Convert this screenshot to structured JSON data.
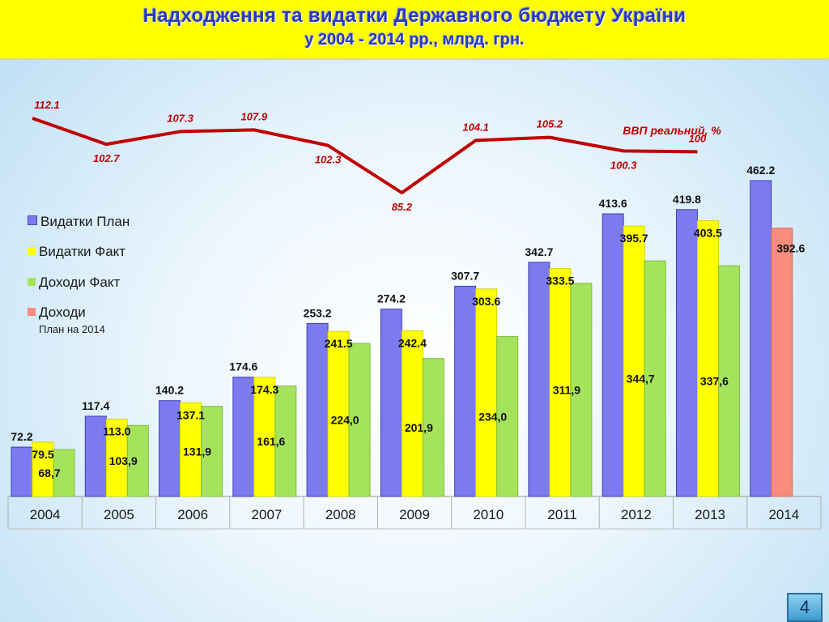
{
  "header": {
    "title": "Надходження та видатки Державного бюджету України",
    "subtitle": "у 2004 - 2014 рр., млрд. грн."
  },
  "page_number": "4",
  "colors": {
    "header_bg": "#ffff00",
    "title": "#2a3bb5",
    "expend_plan": "#7b7bef",
    "expend_fact": "#ffff00",
    "income_fact": "#a6e35c",
    "income_plan_2014": "#f58c7c",
    "gdp_line": "#c00000"
  },
  "chart_data": {
    "type": "bar",
    "categories": [
      "2004",
      "2005",
      "2006",
      "2007",
      "2008",
      "2009",
      "2010",
      "2011",
      "2012",
      "2013",
      "2014"
    ],
    "series": [
      {
        "name": "Видатки План",
        "values": [
          72.2,
          117.4,
          140.2,
          174.6,
          253.2,
          274.2,
          307.7,
          342.7,
          413.6,
          419.8,
          462.2
        ],
        "labels": [
          "72.2",
          "117.4",
          "140.2",
          "174.6",
          "253.2",
          "274.2",
          "307.7",
          "342.7",
          "413.6",
          "419.8",
          "462.2"
        ]
      },
      {
        "name": "Видатки Факт",
        "values": [
          79.5,
          113.0,
          137.1,
          174.3,
          241.5,
          242.4,
          303.6,
          333.5,
          395.7,
          403.5,
          null
        ],
        "labels": [
          "79.5",
          "113.0",
          "137.1",
          "174.3",
          "241.5",
          "242.4",
          "303.6",
          "333.5",
          "395.7",
          "403.5",
          null
        ]
      },
      {
        "name": "Доходи Факт",
        "values": [
          68.7,
          103.9,
          131.9,
          161.6,
          224.0,
          201.9,
          234.0,
          311.9,
          344.7,
          337.6,
          null
        ],
        "labels": [
          "68,7",
          "103,9",
          "131,9",
          "161,6",
          "224,0",
          "201,9",
          "234,0",
          "311,9",
          "344,7",
          "337,6",
          null
        ]
      },
      {
        "name": "Доходи",
        "note": "План на 2014",
        "values": [
          null,
          null,
          null,
          null,
          null,
          null,
          null,
          null,
          null,
          null,
          392.6
        ],
        "labels": [
          null,
          null,
          null,
          null,
          null,
          null,
          null,
          null,
          null,
          null,
          "392.6"
        ]
      }
    ],
    "line": {
      "name": "ВВП реальний, %",
      "values": [
        112.1,
        102.7,
        107.3,
        107.9,
        102.3,
        85.2,
        104.1,
        105.2,
        100.3,
        100
      ],
      "labels": [
        "112.1",
        "102.7",
        "107.3",
        "107.9",
        "102.3",
        "85.2",
        "104.1",
        "105.2",
        "100.3",
        "100"
      ]
    },
    "ylim": [
      0,
      480
    ],
    "grid": false,
    "legend": "left"
  }
}
